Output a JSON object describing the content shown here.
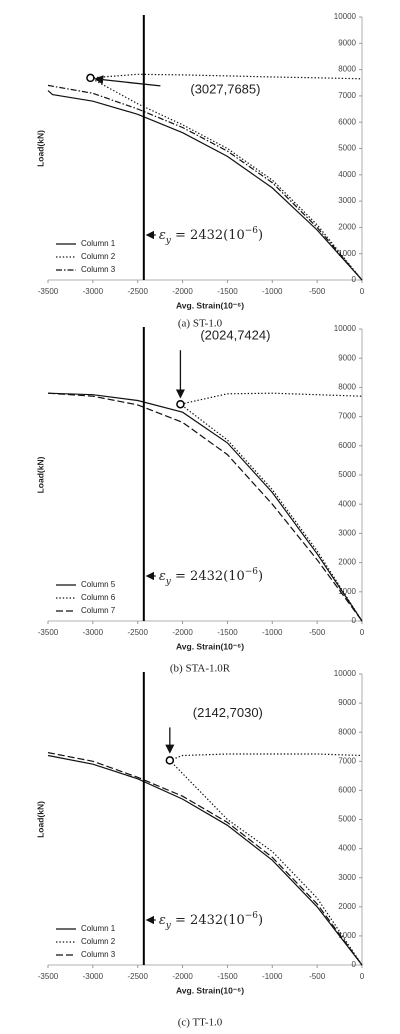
{
  "chart_data": [
    {
      "type": "line",
      "caption": "(a) ST-1.0",
      "xlabel": "Avg. Strain(10⁻⁶)",
      "ylabel": "Load(kN)",
      "xlim": [
        -3500,
        0
      ],
      "xticks": [
        -3500,
        -3000,
        -2500,
        -2000,
        -1500,
        -1000,
        -500,
        0
      ],
      "ylim": [
        0,
        10000
      ],
      "yticks": [
        0,
        1000,
        2000,
        3000,
        4000,
        5000,
        6000,
        7000,
        8000,
        9000,
        10000
      ],
      "legend": "lower left",
      "grid": false,
      "vline": {
        "x": -2432,
        "parts": [
          "ε",
          "y",
          " = 2432(10",
          "−6",
          ")"
        ]
      },
      "point": {
        "label": "(3027,7685)",
        "x": -3027,
        "y": 7685
      },
      "series": [
        {
          "name": "Column 1",
          "style": "solid",
          "color": "#111",
          "x": [
            -3500,
            -3450,
            -3000,
            -2500,
            -2000,
            -1500,
            -1000,
            -500,
            0
          ],
          "values": [
            7200,
            7050,
            6800,
            6300,
            5600,
            4700,
            3500,
            1900,
            0
          ]
        },
        {
          "name": "Column 2",
          "style": "dotted",
          "color": "#111",
          "x": [
            0,
            -500,
            -1000,
            -1500,
            -2000,
            -2500,
            -3027,
            -2500,
            -2000,
            -1500,
            -1000,
            -500,
            0
          ],
          "values": [
            0,
            2100,
            3800,
            5000,
            5900,
            6700,
            7685,
            7820,
            7800,
            7760,
            7720,
            7690,
            7650
          ]
        },
        {
          "name": "Column 3",
          "style": "dashdot",
          "color": "#111",
          "x": [
            -3500,
            -3000,
            -2500,
            -2000,
            -1500,
            -1000,
            -500,
            0
          ],
          "values": [
            7400,
            7100,
            6500,
            5800,
            4900,
            3700,
            2000,
            0
          ]
        }
      ]
    },
    {
      "type": "line",
      "caption": "(b) STA-1.0R",
      "xlabel": "Avg. Strain(10⁻⁶)",
      "ylabel": "Load(kN)",
      "xlim": [
        -3500,
        0
      ],
      "xticks": [
        -3500,
        -3000,
        -2500,
        -2000,
        -1500,
        -1000,
        -500,
        0
      ],
      "ylim": [
        0,
        10000
      ],
      "yticks": [
        0,
        1000,
        2000,
        3000,
        4000,
        5000,
        6000,
        7000,
        8000,
        9000,
        10000
      ],
      "legend": "lower left",
      "grid": false,
      "vline": {
        "x": -2432,
        "parts": [
          "ε",
          "y",
          " = 2432(10",
          "−6",
          ")"
        ]
      },
      "point": {
        "label": "(2024,7424)",
        "x": -2024,
        "y": 7424
      },
      "series": [
        {
          "name": "Column 5",
          "style": "solid",
          "color": "#111",
          "x": [
            -3500,
            -3000,
            -2500,
            -2000,
            -1500,
            -1000,
            -500,
            0
          ],
          "values": [
            7800,
            7750,
            7550,
            7150,
            6100,
            4400,
            2300,
            0
          ]
        },
        {
          "name": "Column 6",
          "style": "dotted",
          "color": "#111",
          "x": [
            0,
            -500,
            -1000,
            -1500,
            -2024,
            -1500,
            -1000,
            -500,
            0
          ],
          "values": [
            0,
            2400,
            4500,
            6200,
            7424,
            7780,
            7800,
            7750,
            7700
          ]
        },
        {
          "name": "Column 7",
          "style": "dashed",
          "color": "#111",
          "x": [
            -3500,
            -3000,
            -2500,
            -2000,
            -1500,
            -1000,
            -500,
            0
          ],
          "values": [
            7800,
            7700,
            7400,
            6800,
            5700,
            4000,
            2100,
            0
          ]
        }
      ]
    },
    {
      "type": "line",
      "caption": "(c) TT-1.0",
      "xlabel": "Avg. Strain(10⁻⁶)",
      "ylabel": "Load(kN)",
      "xlim": [
        -3500,
        0
      ],
      "xticks": [
        -3500,
        -3000,
        -2500,
        -2000,
        -1500,
        -1000,
        -500,
        0
      ],
      "ylim": [
        0,
        10000
      ],
      "yticks": [
        0,
        1000,
        2000,
        3000,
        4000,
        5000,
        6000,
        7000,
        8000,
        9000,
        10000
      ],
      "legend": "lower left",
      "grid": false,
      "vline": {
        "x": -2432,
        "parts": [
          "ε",
          "y",
          " = 2432(10",
          "−6",
          ")"
        ]
      },
      "point": {
        "label": "(2142,7030)",
        "x": -2142,
        "y": 7030
      },
      "series": [
        {
          "name": "Column 1",
          "style": "solid",
          "color": "#111",
          "x": [
            -3500,
            -3000,
            -2500,
            -2000,
            -1500,
            -1000,
            -500,
            0
          ],
          "values": [
            7200,
            6900,
            6400,
            5700,
            4800,
            3600,
            2000,
            0
          ]
        },
        {
          "name": "Column 2",
          "style": "dotted",
          "color": "#111",
          "x": [
            0,
            -500,
            -1000,
            -1500,
            -2142,
            -2000,
            -1500,
            -1000,
            -500,
            0
          ],
          "values": [
            0,
            2300,
            3900,
            5000,
            7030,
            7200,
            7250,
            7250,
            7250,
            7200
          ]
        },
        {
          "name": "Column 3",
          "style": "dashed",
          "color": "#111",
          "x": [
            -3500,
            -3000,
            -2500,
            -2000,
            -1500,
            -1000,
            -500,
            0
          ],
          "values": [
            7300,
            7000,
            6450,
            5800,
            4900,
            3700,
            2100,
            0
          ]
        }
      ]
    }
  ]
}
